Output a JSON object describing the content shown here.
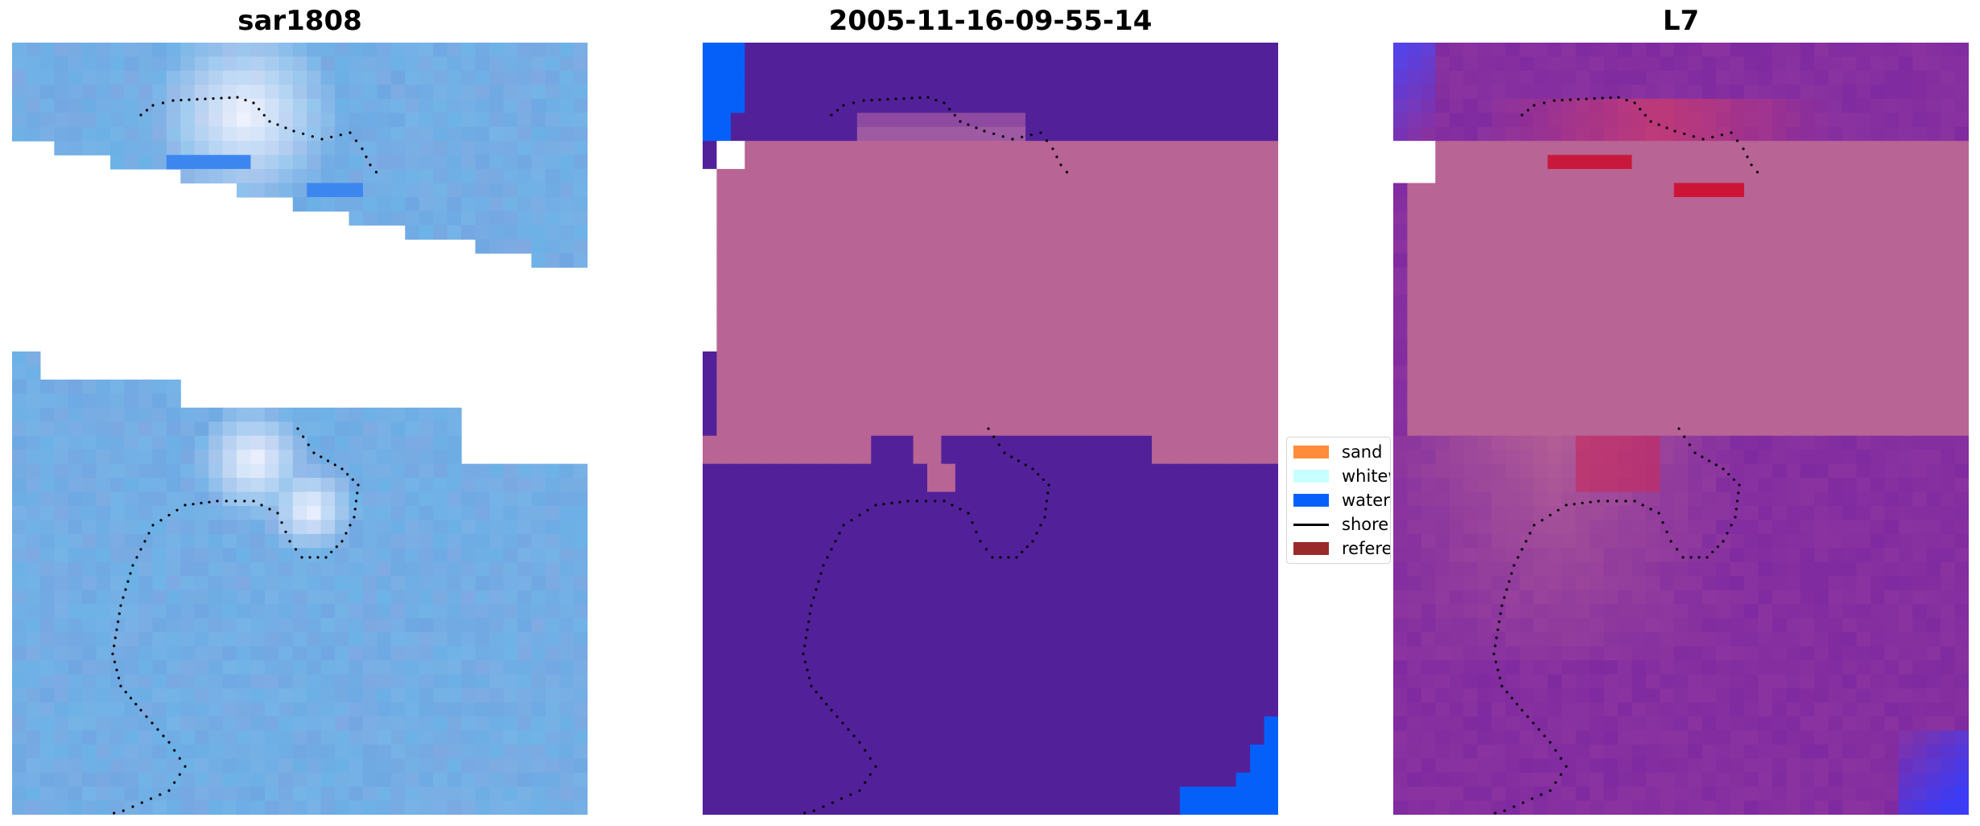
{
  "panels": [
    {
      "title": "sar1808",
      "style": "sar"
    },
    {
      "title": "2005-11-16-09-55-14",
      "style": "classified"
    },
    {
      "title": "L7",
      "style": "l7"
    }
  ],
  "legend": {
    "placement": "center-right",
    "items": [
      {
        "label": "sand",
        "kind": "patch",
        "color": "#ff8c3a"
      },
      {
        "label": "whitewater",
        "kind": "patch",
        "color": "#c8ffff"
      },
      {
        "label": "water",
        "kind": "patch",
        "color": "#0560fa"
      },
      {
        "label": "shoreline",
        "kind": "line",
        "color": "#000000"
      },
      {
        "label": "reference",
        "kind": "patch",
        "color": "#9a2a2a"
      }
    ]
  },
  "colors": {
    "land": "#b86494",
    "water_classified": "#52219a",
    "water_blue": "#0560fa",
    "sar_base": "#6fa7e2",
    "l7_base": "#7f2aa0",
    "whitewater": "#c8ffff",
    "shoreline": "#000000"
  }
}
